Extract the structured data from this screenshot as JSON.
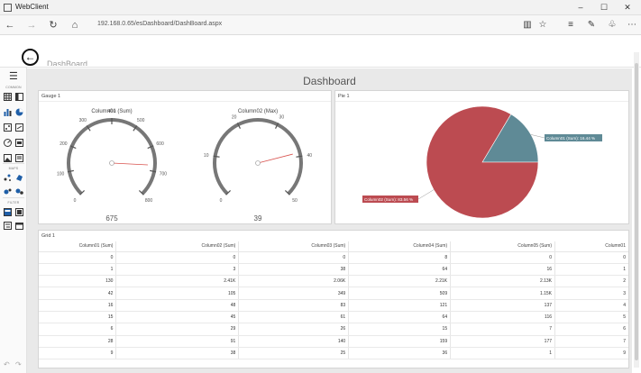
{
  "window": {
    "title": "WebClient"
  },
  "browser": {
    "url": "192.168.0.65/esDashboard/DashBoard.aspx"
  },
  "header": {
    "title": "DashBoard"
  },
  "sidebar": {
    "groups": [
      "COMMON",
      "MAPS",
      "FILTER"
    ]
  },
  "dashboard": {
    "title": "Dashboard"
  },
  "gauge_panel": {
    "title": "Gauge 1",
    "gauges": [
      {
        "title": "Column01 (Sum)",
        "value": 675,
        "value_label": "675",
        "min": 0,
        "max": 800,
        "ticks": [
          "0",
          "100",
          "200",
          "300",
          "400",
          "500",
          "600",
          "700",
          "800"
        ]
      },
      {
        "title": "Column02 (Max)",
        "value": 39,
        "value_label": "39",
        "min": 0,
        "max": 50,
        "ticks": [
          "0",
          "10",
          "20",
          "30",
          "40",
          "50"
        ]
      }
    ]
  },
  "pie_panel": {
    "title": "Pie 1"
  },
  "chart_data": {
    "type": "pie",
    "slices": [
      {
        "label": "Column01 (Sum): 16.44 %",
        "value": 16.44,
        "color": "#5f8a96"
      },
      {
        "label": "Column02 (Sum): 83.56 %",
        "value": 83.56,
        "color": "#bc4b51"
      }
    ]
  },
  "grid": {
    "title": "Grid 1",
    "columns": [
      "Column01 (Sum)",
      "Column02 (Sum)",
      "Column03 (Sum)",
      "Column04 (Sum)",
      "Column05 (Sum)",
      "Column01"
    ],
    "rows": [
      [
        "0",
        "0",
        "0",
        "8",
        "0",
        "0"
      ],
      [
        "1",
        "3",
        "38",
        "64",
        "16",
        "1"
      ],
      [
        "130",
        "2.41K",
        "2.06K",
        "2.21K",
        "2.13K",
        "2"
      ],
      [
        "42",
        "105",
        "349",
        "509",
        "1.15K",
        "3"
      ],
      [
        "16",
        "48",
        "83",
        "121",
        "137",
        "4"
      ],
      [
        "15",
        "45",
        "61",
        "64",
        "116",
        "5"
      ],
      [
        "6",
        "29",
        "26",
        "15",
        "7",
        "6"
      ],
      [
        "28",
        "91",
        "140",
        "159",
        "177",
        "7"
      ],
      [
        "9",
        "38",
        "25",
        "36",
        "1",
        "9"
      ]
    ]
  },
  "colors": {
    "pie_blue": "#5f8a96",
    "pie_red": "#bc4b51",
    "needle": "#d9534f",
    "arc": "#777777"
  }
}
